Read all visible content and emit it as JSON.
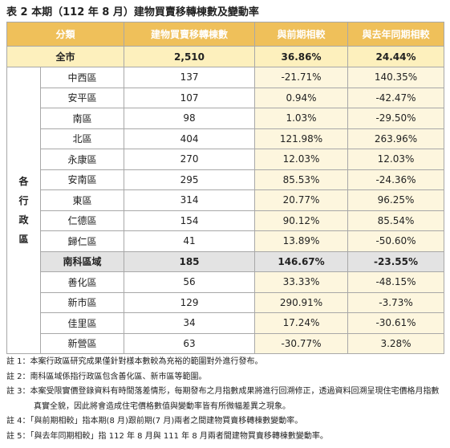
{
  "title": "表 2 本期（112 年 8 月）建物買賣移轉棟數及變動率",
  "table": {
    "header": [
      "分類",
      "建物買賣移轉棟數",
      "與前期相較",
      "與去年同期相較"
    ],
    "total": [
      "全市",
      "2,510",
      "36.86%",
      "24.44%"
    ],
    "group_label": "各行政區",
    "rows": [
      [
        "中西區",
        "137",
        "-21.71%",
        "140.35%"
      ],
      [
        "安平區",
        "107",
        "0.94%",
        "-42.47%"
      ],
      [
        "南區",
        "98",
        "1.03%",
        "-29.50%"
      ],
      [
        "北區",
        "404",
        "121.98%",
        "263.96%"
      ],
      [
        "永康區",
        "270",
        "12.03%",
        "12.03%"
      ],
      [
        "安南區",
        "295",
        "85.53%",
        "-24.36%"
      ],
      [
        "東區",
        "314",
        "20.77%",
        "96.25%"
      ],
      [
        "仁德區",
        "154",
        "90.12%",
        "85.54%"
      ],
      [
        "歸仁區",
        "41",
        "13.89%",
        "-50.60%"
      ],
      [
        "南科區域",
        "185",
        "146.67%",
        "-23.55%"
      ],
      [
        "善化區",
        "56",
        "33.33%",
        "-48.15%"
      ],
      [
        "新市區",
        "129",
        "290.91%",
        "-3.73%"
      ],
      [
        "佳里區",
        "34",
        "17.24%",
        "-30.61%"
      ],
      [
        "新營區",
        "63",
        "-30.77%",
        "3.28%"
      ]
    ]
  },
  "notes": [
    "註 1：本案行政區研究成果僅針對樣本數較為充裕的範圍對外進行發布。",
    "註 2：南科區域係指行政區包含善化區、新市區等範圍。",
    "註 3：本案受限實價登錄資料有時間落差情形，每期發布之月指數成果將進行回溯修正，透過資料回溯呈現住宅價格月指數真實全貌，因此將會造成住宅價格數值與變動率皆有所微幅差異之現象。",
    "註 4：「與前期相較」指本期(8 月)跟前期(7 月)兩者之間建物買賣移轉棟數變動率。",
    "註 5：「與去年同期相較」指 112 年 8 月與 111 年 8 月兩者間建物買賣移轉棟數變動率。"
  ]
}
